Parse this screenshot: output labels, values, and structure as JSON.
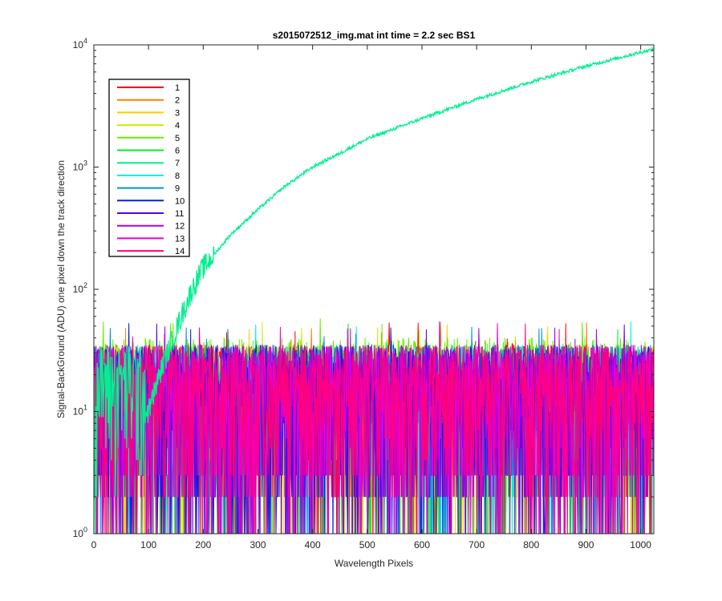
{
  "chart_data": {
    "type": "line",
    "title": "s2015072512_img.mat int time = 2.2 sec   BS1",
    "xlabel": "Wavelength Pixels",
    "ylabel": "Signal-BackGround (ADU) one pixel down the track direction",
    "xlim": [
      0,
      1024
    ],
    "ylim": [
      1,
      10000
    ],
    "y_scale": "log",
    "grid": false,
    "legend_position": "top-left",
    "x_ticks": [
      "0",
      "100",
      "200",
      "300",
      "400",
      "500",
      "600",
      "700",
      "800",
      "900",
      "1000"
    ],
    "x_tick_values": [
      0,
      100,
      200,
      300,
      400,
      500,
      600,
      700,
      800,
      900,
      1000
    ],
    "y_ticks": [
      {
        "base": "10",
        "exp": "0",
        "value": 1
      },
      {
        "base": "10",
        "exp": "1",
        "value": 10
      },
      {
        "base": "10",
        "exp": "2",
        "value": 100
      },
      {
        "base": "10",
        "exp": "3",
        "value": 1000
      },
      {
        "base": "10",
        "exp": "4",
        "value": 10000
      }
    ],
    "series": [
      {
        "name": "1",
        "color": "#ff0000",
        "noise_range": [
          1,
          35
        ]
      },
      {
        "name": "2",
        "color": "#ff7f00",
        "noise_range": [
          1,
          35
        ]
      },
      {
        "name": "3",
        "color": "#ffcc00",
        "noise_range": [
          1,
          35
        ]
      },
      {
        "name": "4",
        "color": "#ccee00",
        "noise_range": [
          1,
          35
        ]
      },
      {
        "name": "5",
        "color": "#66ee00",
        "noise_range": [
          1,
          40
        ]
      },
      {
        "name": "6",
        "color": "#00ee22",
        "noise_range": [
          1,
          35
        ]
      },
      {
        "name": "7",
        "color": "#00f090",
        "noise_range": [
          1,
          35
        ],
        "trend": {
          "x": [
            0,
            100,
            120,
            140,
            160,
            180,
            200,
            250,
            300,
            350,
            400,
            450,
            500,
            600,
            700,
            800,
            900,
            1000,
            1023
          ],
          "y": [
            5,
            10,
            20,
            35,
            60,
            100,
            150,
            280,
            450,
            700,
            1000,
            1300,
            1700,
            2500,
            3600,
            5000,
            6700,
            8700,
            9200
          ]
        }
      },
      {
        "name": "8",
        "color": "#00eeee",
        "noise_range": [
          1,
          35
        ]
      },
      {
        "name": "9",
        "color": "#0090e0",
        "noise_range": [
          1,
          35
        ]
      },
      {
        "name": "10",
        "color": "#0022dd",
        "noise_range": [
          1,
          35
        ]
      },
      {
        "name": "11",
        "color": "#5500ee",
        "noise_range": [
          1,
          35
        ]
      },
      {
        "name": "12",
        "color": "#aa00ee",
        "noise_range": [
          1,
          35
        ]
      },
      {
        "name": "13",
        "color": "#ee00cc",
        "noise_range": [
          1,
          35
        ]
      },
      {
        "name": "14",
        "color": "#ff0077",
        "noise_range": [
          1,
          35
        ]
      }
    ]
  }
}
